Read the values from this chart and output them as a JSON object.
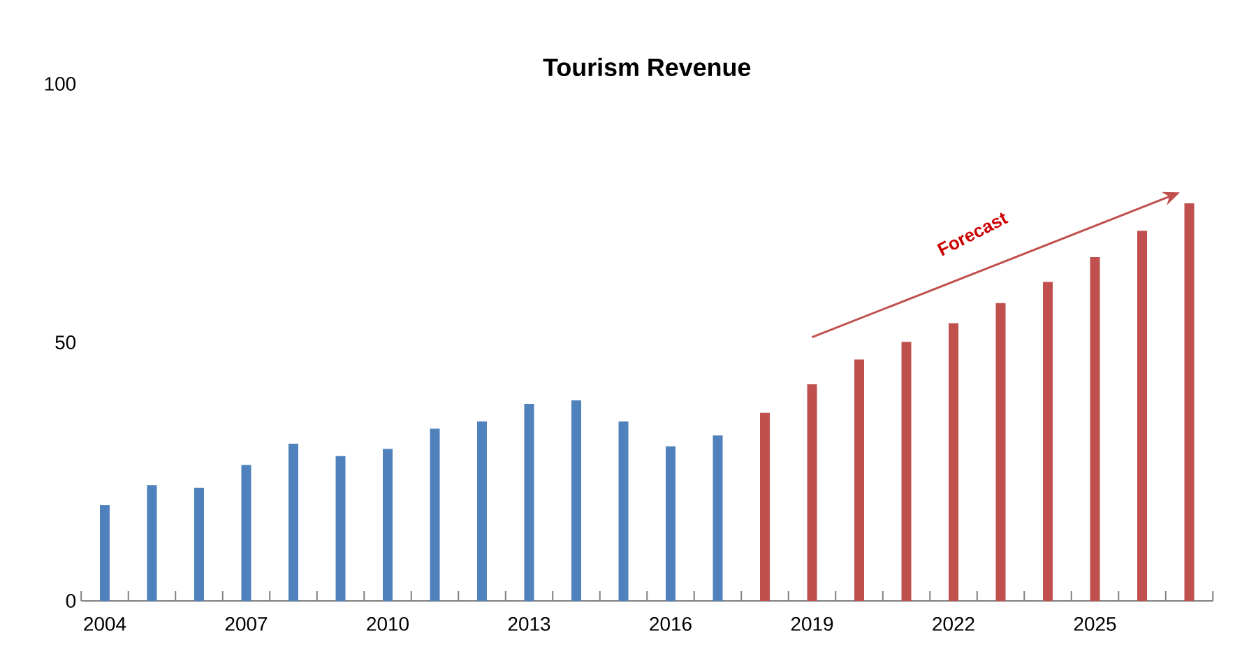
{
  "chart_data": {
    "type": "bar",
    "title": "Tourism Revenue",
    "categories": [
      "2004",
      null,
      null,
      "2007",
      null,
      null,
      "2010",
      null,
      null,
      "2013",
      null,
      null,
      "2016",
      null,
      null,
      "2019",
      null,
      null,
      "2022",
      null,
      null,
      "2025",
      null,
      null
    ],
    "series": [
      {
        "color": "#4f81bd",
        "values": [
          18.5,
          22.4,
          21.9,
          26.3,
          30.4,
          28,
          29.4,
          33.3,
          34.7,
          38.1,
          38.8,
          34.7,
          29.9,
          32,
          null,
          null,
          null,
          null,
          null,
          null,
          null,
          null,
          null,
          null
        ]
      },
      {
        "color": "#c0504d",
        "values": [
          null,
          null,
          null,
          null,
          null,
          null,
          null,
          null,
          null,
          null,
          null,
          null,
          null,
          null,
          36.4,
          41.9,
          46.7,
          50.1,
          53.7,
          57.6,
          61.7,
          66.5,
          71.6,
          76.9
        ]
      }
    ],
    "ylim": [
      0,
      100
    ],
    "yticks": [
      0,
      50,
      100
    ],
    "annotations": [
      "Forecast"
    ]
  }
}
